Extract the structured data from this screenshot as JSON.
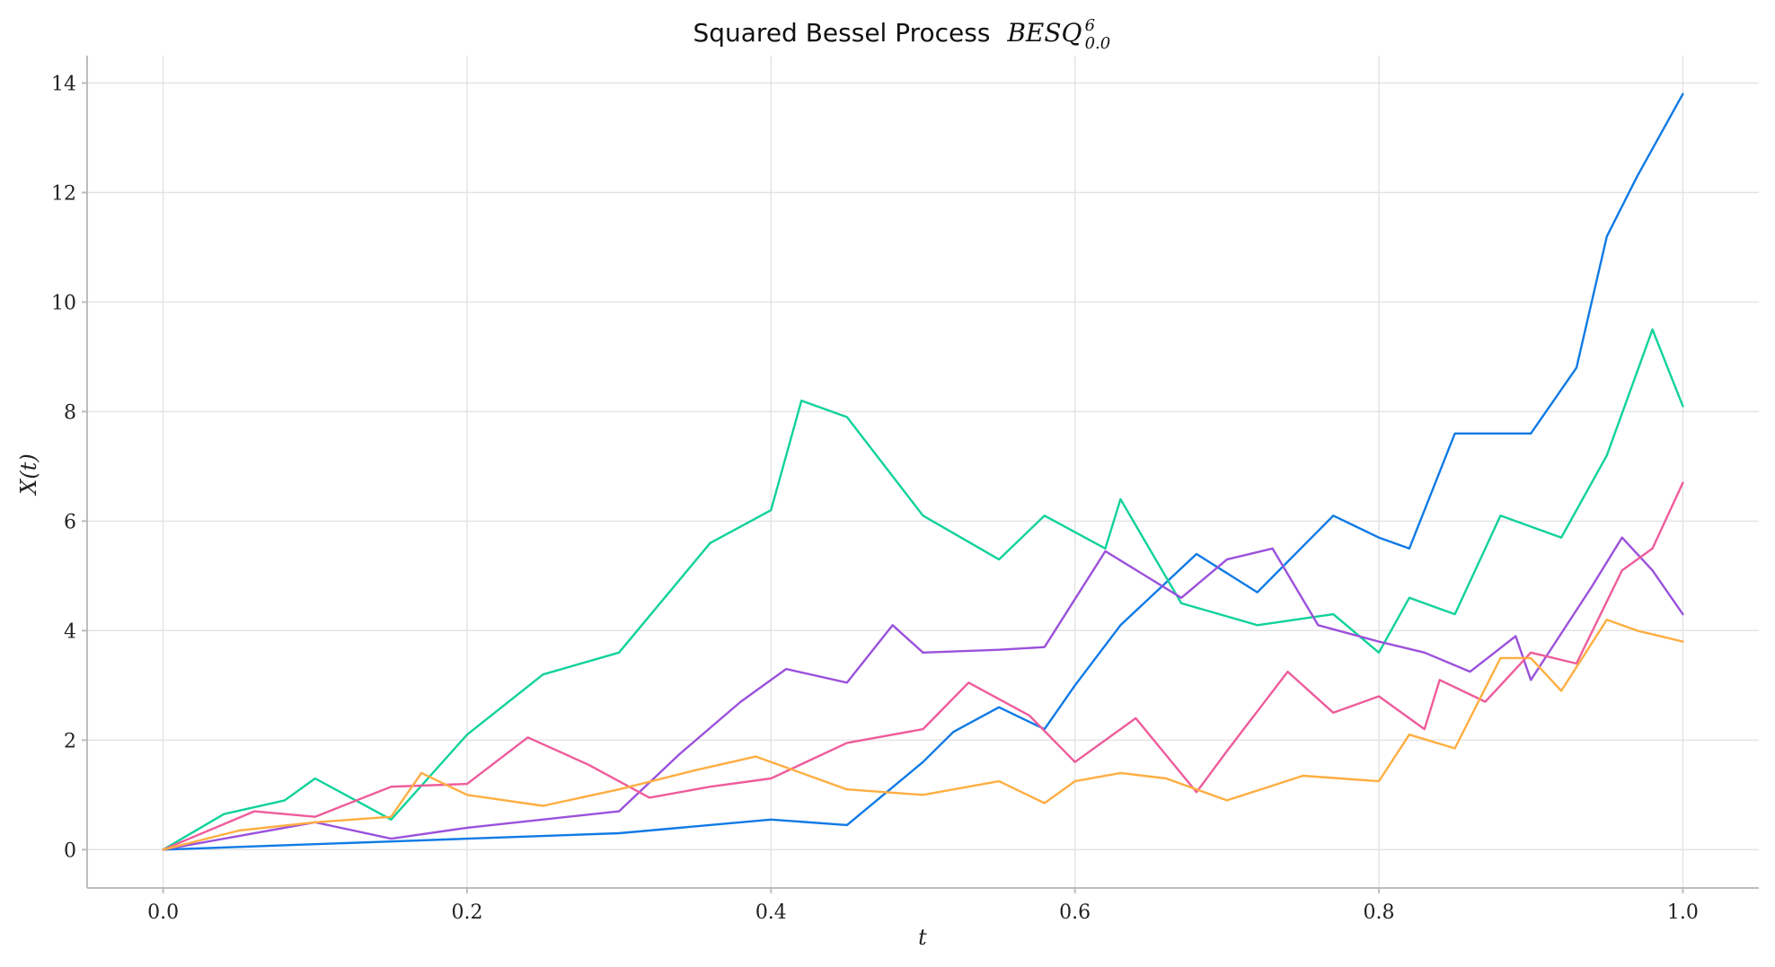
{
  "chart_data": {
    "type": "line",
    "title": {
      "prefix": "Squared Bessel Process",
      "math": "BESQ",
      "superscript": "6",
      "subscript": "0.0"
    },
    "xlabel": "t",
    "ylabel": "X(t)",
    "xlim": [
      -0.05,
      1.05
    ],
    "ylim": [
      -0.7,
      14.5
    ],
    "xticks": [
      0.0,
      0.2,
      0.4,
      0.6,
      0.8,
      1.0
    ],
    "xtick_labels": [
      "0.0",
      "0.2",
      "0.4",
      "0.6",
      "0.8",
      "1.0"
    ],
    "yticks": [
      0,
      2,
      4,
      6,
      8,
      10,
      12,
      14
    ],
    "ytick_labels": [
      "0",
      "2",
      "4",
      "6",
      "8",
      "10",
      "12",
      "14"
    ],
    "grid": true,
    "series": [
      {
        "color": "#0f7ae5",
        "x": [
          0.0,
          0.1,
          0.15,
          0.2,
          0.3,
          0.4,
          0.45,
          0.5,
          0.52,
          0.55,
          0.58,
          0.6,
          0.63,
          0.68,
          0.72,
          0.77,
          0.8,
          0.82,
          0.85,
          0.9,
          0.93,
          0.95,
          0.97,
          1.0
        ],
        "y": [
          0.0,
          0.1,
          0.15,
          0.2,
          0.3,
          0.55,
          0.45,
          1.6,
          2.15,
          2.6,
          2.2,
          3.0,
          4.1,
          5.4,
          4.7,
          6.1,
          5.7,
          5.5,
          7.6,
          7.6,
          8.8,
          11.2,
          12.3,
          13.8
        ]
      },
      {
        "color": "#11d29a",
        "x": [
          0.0,
          0.04,
          0.08,
          0.1,
          0.15,
          0.2,
          0.25,
          0.3,
          0.36,
          0.4,
          0.42,
          0.45,
          0.5,
          0.55,
          0.58,
          0.62,
          0.63,
          0.67,
          0.72,
          0.77,
          0.8,
          0.82,
          0.85,
          0.88,
          0.9,
          0.92,
          0.95,
          0.98,
          1.0
        ],
        "y": [
          0.0,
          0.65,
          0.9,
          1.3,
          0.55,
          2.1,
          3.2,
          3.6,
          5.6,
          6.2,
          8.2,
          7.9,
          6.1,
          5.3,
          6.1,
          5.5,
          6.4,
          4.5,
          4.1,
          4.3,
          3.6,
          4.6,
          4.3,
          6.1,
          5.9,
          5.7,
          7.2,
          9.5,
          8.1
        ]
      },
      {
        "color": "#9b51dc",
        "x": [
          0.0,
          0.1,
          0.15,
          0.2,
          0.3,
          0.34,
          0.38,
          0.41,
          0.45,
          0.48,
          0.5,
          0.55,
          0.58,
          0.62,
          0.67,
          0.7,
          0.73,
          0.76,
          0.8,
          0.83,
          0.86,
          0.89,
          0.9,
          0.94,
          0.96,
          0.98,
          1.0
        ],
        "y": [
          0.0,
          0.5,
          0.2,
          0.4,
          0.7,
          1.75,
          2.7,
          3.3,
          3.05,
          4.1,
          3.6,
          3.65,
          3.7,
          5.45,
          4.6,
          5.3,
          5.5,
          4.1,
          3.8,
          3.6,
          3.25,
          3.9,
          3.1,
          4.8,
          5.7,
          5.1,
          4.3
        ]
      },
      {
        "color": "#ee5c9c",
        "x": [
          0.0,
          0.06,
          0.1,
          0.15,
          0.2,
          0.24,
          0.28,
          0.32,
          0.36,
          0.4,
          0.45,
          0.5,
          0.53,
          0.57,
          0.6,
          0.64,
          0.68,
          0.7,
          0.74,
          0.77,
          0.8,
          0.83,
          0.84,
          0.87,
          0.9,
          0.93,
          0.96,
          0.98,
          1.0
        ],
        "y": [
          0.0,
          0.7,
          0.6,
          1.15,
          1.2,
          2.05,
          1.55,
          0.95,
          1.15,
          1.3,
          1.95,
          2.2,
          3.05,
          2.45,
          1.6,
          2.4,
          1.05,
          1.8,
          3.25,
          2.5,
          2.8,
          2.2,
          3.1,
          2.7,
          3.6,
          3.4,
          5.1,
          5.5,
          6.7
        ]
      },
      {
        "color": "#ffae42",
        "x": [
          0.0,
          0.05,
          0.1,
          0.15,
          0.17,
          0.2,
          0.25,
          0.3,
          0.35,
          0.39,
          0.45,
          0.5,
          0.55,
          0.58,
          0.6,
          0.63,
          0.66,
          0.7,
          0.75,
          0.8,
          0.82,
          0.85,
          0.88,
          0.9,
          0.92,
          0.95,
          0.97,
          1.0
        ],
        "y": [
          0.0,
          0.35,
          0.5,
          0.6,
          1.4,
          1.0,
          0.8,
          1.1,
          1.45,
          1.7,
          1.1,
          1.0,
          1.25,
          0.85,
          1.25,
          1.4,
          1.3,
          0.9,
          1.35,
          1.25,
          2.1,
          1.85,
          3.5,
          3.5,
          2.9,
          4.2,
          4.0,
          3.8
        ]
      }
    ]
  }
}
